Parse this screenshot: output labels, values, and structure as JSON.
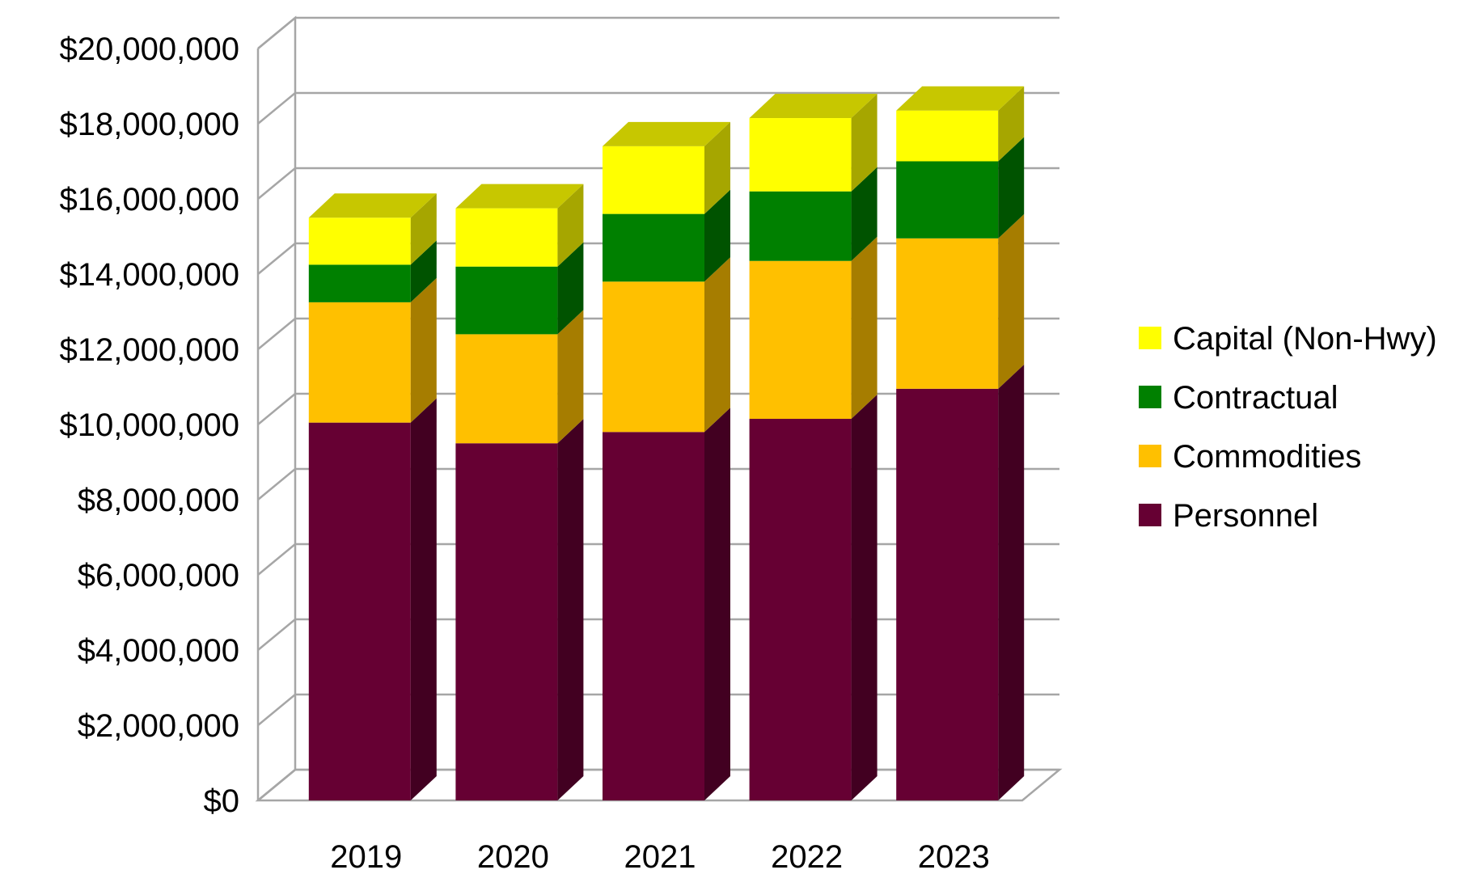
{
  "chart_data": {
    "type": "bar",
    "stacked": true,
    "three_d": true,
    "categories": [
      "2019",
      "2020",
      "2021",
      "2022",
      "2023"
    ],
    "series": [
      {
        "name": "Personnel",
        "color": "#660033",
        "values": [
          10050000,
          9500000,
          9800000,
          10150000,
          10950000
        ]
      },
      {
        "name": "Commodities",
        "color": "#FFC000",
        "values": [
          3200000,
          2900000,
          4000000,
          4200000,
          4000000
        ]
      },
      {
        "name": "Contractual",
        "color": "#008000",
        "values": [
          1000000,
          1800000,
          1800000,
          1850000,
          2050000
        ]
      },
      {
        "name": "Capital (Non-Hwy)",
        "color": "#FFFF00",
        "values": [
          1250000,
          1550000,
          1800000,
          1950000,
          1350000
        ]
      }
    ],
    "y_ticks": [
      {
        "value": 0,
        "label": "$0"
      },
      {
        "value": 2000000,
        "label": "$2,000,000"
      },
      {
        "value": 4000000,
        "label": "$4,000,000"
      },
      {
        "value": 6000000,
        "label": "$6,000,000"
      },
      {
        "value": 8000000,
        "label": "$8,000,000"
      },
      {
        "value": 10000000,
        "label": "$10,000,000"
      },
      {
        "value": 12000000,
        "label": "$12,000,000"
      },
      {
        "value": 14000000,
        "label": "$14,000,000"
      },
      {
        "value": 16000000,
        "label": "$16,000,000"
      },
      {
        "value": 18000000,
        "label": "$18,000,000"
      },
      {
        "value": 20000000,
        "label": "$20,000,000"
      }
    ],
    "ylim": [
      0,
      20000000
    ],
    "grid": true,
    "legend_position": "right",
    "legend_order": [
      "Capital (Non-Hwy)",
      "Contractual",
      "Commodities",
      "Personnel"
    ]
  }
}
